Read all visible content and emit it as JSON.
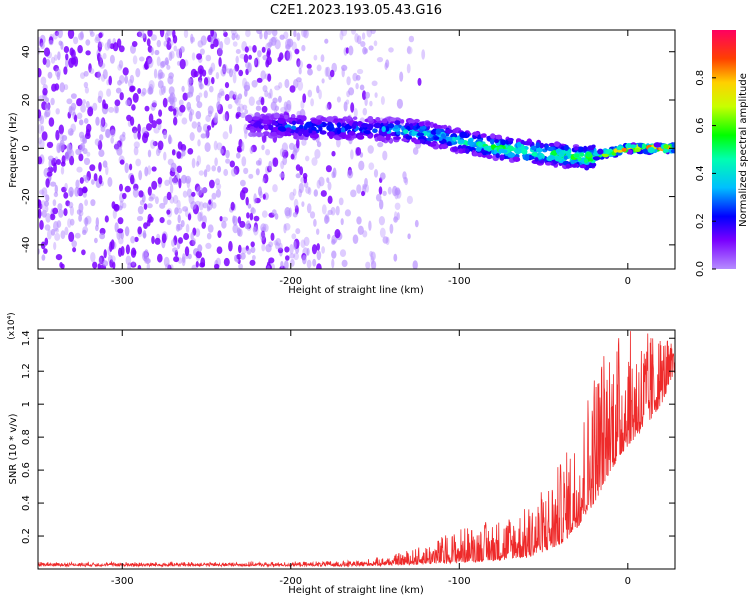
{
  "title": "C2E1.2023.193.05.43.G16",
  "chart_data": [
    {
      "type": "heatmap",
      "xlabel": "Height of straight line (km)",
      "ylabel": "Frequency (Hz)",
      "xlim": [
        -350,
        28
      ],
      "ylim": [
        -50,
        49
      ],
      "xticks": [
        -300,
        -200,
        -100,
        0
      ],
      "yticks": [
        -40,
        -20,
        0,
        20,
        40
      ],
      "colorbar": {
        "label": "Normalized spectral amplitude",
        "range": [
          0,
          1
        ],
        "ticks": [
          0.0,
          0.2,
          0.4,
          0.6,
          0.8
        ]
      },
      "colormap": [
        "#ffffff",
        "#b58cff",
        "#7a00ff",
        "#0000ff",
        "#00bfff",
        "#00ffb0",
        "#00ff00",
        "#c8ff00",
        "#ffd000",
        "#ff4000",
        "#ff0060"
      ],
      "signal_track": {
        "height_km": [
          -225,
          -200,
          -175,
          -150,
          -125,
          -100,
          -75,
          -50,
          -25,
          0,
          25
        ],
        "frequency_hz": [
          10,
          9,
          8,
          8,
          7,
          3,
          0,
          -2,
          -4,
          0,
          0
        ],
        "peak_amplitude": [
          0.15,
          0.3,
          0.3,
          0.3,
          0.45,
          0.45,
          0.55,
          0.55,
          0.6,
          1.0,
          1.0
        ]
      },
      "noise_floor_extent_km": [
        -350,
        -140
      ]
    },
    {
      "type": "line",
      "xlabel": "Height of straight line (km)",
      "ylabel": "SNR (10 * v/v)",
      "y_scale_note": "(x10⁴)",
      "xlim": [
        -350,
        28
      ],
      "ylim": [
        0,
        1.45
      ],
      "xticks": [
        -300,
        -200,
        -100,
        0
      ],
      "yticks": [
        0.2,
        0.4,
        0.6,
        0.8,
        1.0,
        1.2,
        1.4
      ],
      "line_color": "#ee2a2a",
      "envelope": {
        "x": [
          -350,
          -300,
          -250,
          -200,
          -160,
          -140,
          -120,
          -100,
          -80,
          -60,
          -50,
          -40,
          -30,
          -20,
          -10,
          0,
          10,
          20,
          28
        ],
        "baseline": [
          0.02,
          0.02,
          0.02,
          0.02,
          0.02,
          0.025,
          0.03,
          0.04,
          0.05,
          0.07,
          0.1,
          0.15,
          0.25,
          0.4,
          0.6,
          0.75,
          0.85,
          1.0,
          1.2
        ],
        "peak": [
          0.04,
          0.04,
          0.04,
          0.04,
          0.05,
          0.08,
          0.15,
          0.25,
          0.3,
          0.38,
          0.5,
          0.65,
          0.85,
          1.25,
          1.45,
          1.45,
          1.45,
          1.45,
          1.35
        ]
      }
    }
  ]
}
